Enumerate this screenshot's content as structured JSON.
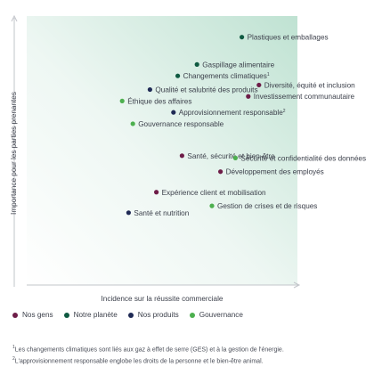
{
  "chart_data": {
    "type": "scatter",
    "xlabel": "Incidence sur la réussite commerciale",
    "ylabel": "Importance pour les parties prenantes",
    "xlim": [
      0,
      100
    ],
    "ylim": [
      0,
      100
    ],
    "grid": false,
    "legend_position": "bottom-left",
    "categories": [
      {
        "key": "gens",
        "name": "Nos gens",
        "color": "#6e1d48"
      },
      {
        "key": "planete",
        "name": "Notre planète",
        "color": "#0f5a41"
      },
      {
        "key": "produits",
        "name": "Nos produits",
        "color": "#1f2a55"
      },
      {
        "key": "gouvernance",
        "name": "Gouvernance",
        "color": "#4db04f"
      }
    ],
    "points": [
      {
        "label": "Plastiques et emballages",
        "category": "planete",
        "x": 84,
        "y": 97,
        "sup": ""
      },
      {
        "label": "Gaspillage alimentaire",
        "category": "planete",
        "x": 63,
        "y": 85,
        "sup": ""
      },
      {
        "label": "Changements climatiques",
        "category": "planete",
        "x": 54,
        "y": 80,
        "sup": "1"
      },
      {
        "label": "Diversité, équité et inclusion",
        "category": "gens",
        "x": 92,
        "y": 76,
        "sup": ""
      },
      {
        "label": "Qualité et salubrité des produits",
        "category": "produits",
        "x": 41,
        "y": 74,
        "sup": ""
      },
      {
        "label": "Investissement communautaire",
        "category": "gens",
        "x": 87,
        "y": 71,
        "sup": ""
      },
      {
        "label": "Éthique des affaires",
        "category": "gouvernance",
        "x": 28,
        "y": 69,
        "sup": ""
      },
      {
        "label": "Approvisionnement responsable",
        "category": "produits",
        "x": 52,
        "y": 64,
        "sup": "2"
      },
      {
        "label": "Gouvernance responsable",
        "category": "gouvernance",
        "x": 33,
        "y": 59,
        "sup": ""
      },
      {
        "label": "Santé, sécurité et bien-être",
        "category": "gens",
        "x": 56,
        "y": 45,
        "sup": ""
      },
      {
        "label": "Sécurité et confidentialité des données",
        "category": "gouvernance",
        "x": 81,
        "y": 44,
        "sup": ""
      },
      {
        "label": "Développement des employés",
        "category": "gens",
        "x": 74,
        "y": 38,
        "sup": ""
      },
      {
        "label": "Expérience client et mobilisation",
        "category": "gens",
        "x": 44,
        "y": 29,
        "sup": ""
      },
      {
        "label": "Gestion de crises et de risques",
        "category": "gouvernance",
        "x": 70,
        "y": 23,
        "sup": ""
      },
      {
        "label": "Santé et nutrition",
        "category": "produits",
        "x": 31,
        "y": 20,
        "sup": ""
      }
    ]
  },
  "footnotes": [
    {
      "sup": "1",
      "text": "Les changements climatiques sont liés aux gaz à effet de serre (GES) et à la gestion de l'énergie."
    },
    {
      "sup": "2",
      "text": "L'approvisionnement responsable englobe les droits de la personne et le bien-être animal."
    }
  ]
}
